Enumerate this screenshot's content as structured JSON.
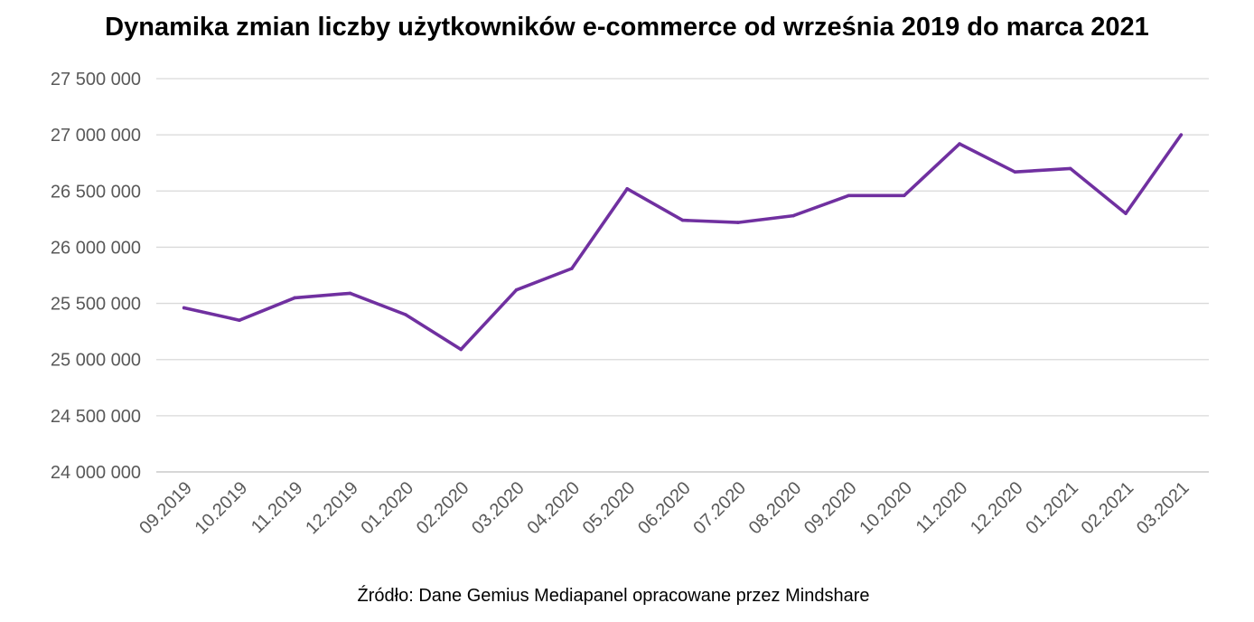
{
  "chart_data": {
    "type": "line",
    "title": "Dynamika zmian liczby użytkowników e-commerce od września 2019 do marca 2021",
    "source": "Źródło: Dane Gemius Mediapanel opracowane przez Mindshare",
    "categories": [
      "09.2019",
      "10.2019",
      "11.2019",
      "12.2019",
      "01.2020",
      "02.2020",
      "03.2020",
      "04.2020",
      "05.2020",
      "06.2020",
      "07.2020",
      "08.2020",
      "09.2020",
      "10.2020",
      "11.2020",
      "12.2020",
      "01.2021",
      "02.2021",
      "03.2021"
    ],
    "series": [
      {
        "color": "#7030A0",
        "values": [
          25460000,
          25350000,
          25550000,
          25590000,
          25400000,
          25090000,
          25620000,
          25810000,
          26520000,
          26240000,
          26220000,
          26280000,
          26460000,
          26460000,
          26920000,
          26670000,
          26700000,
          26300000,
          27000000
        ]
      }
    ],
    "yticks": [
      "24 000 000",
      "24 500 000",
      "25 000 000",
      "25 500 000",
      "26 000 000",
      "26 500 000",
      "27 000 000",
      "27 500 000"
    ],
    "ylim": [
      24000000,
      27500000
    ],
    "grid": true,
    "legend": "none",
    "gridColor": "#d9d9d9",
    "axisColor": "#bfbfbf"
  }
}
